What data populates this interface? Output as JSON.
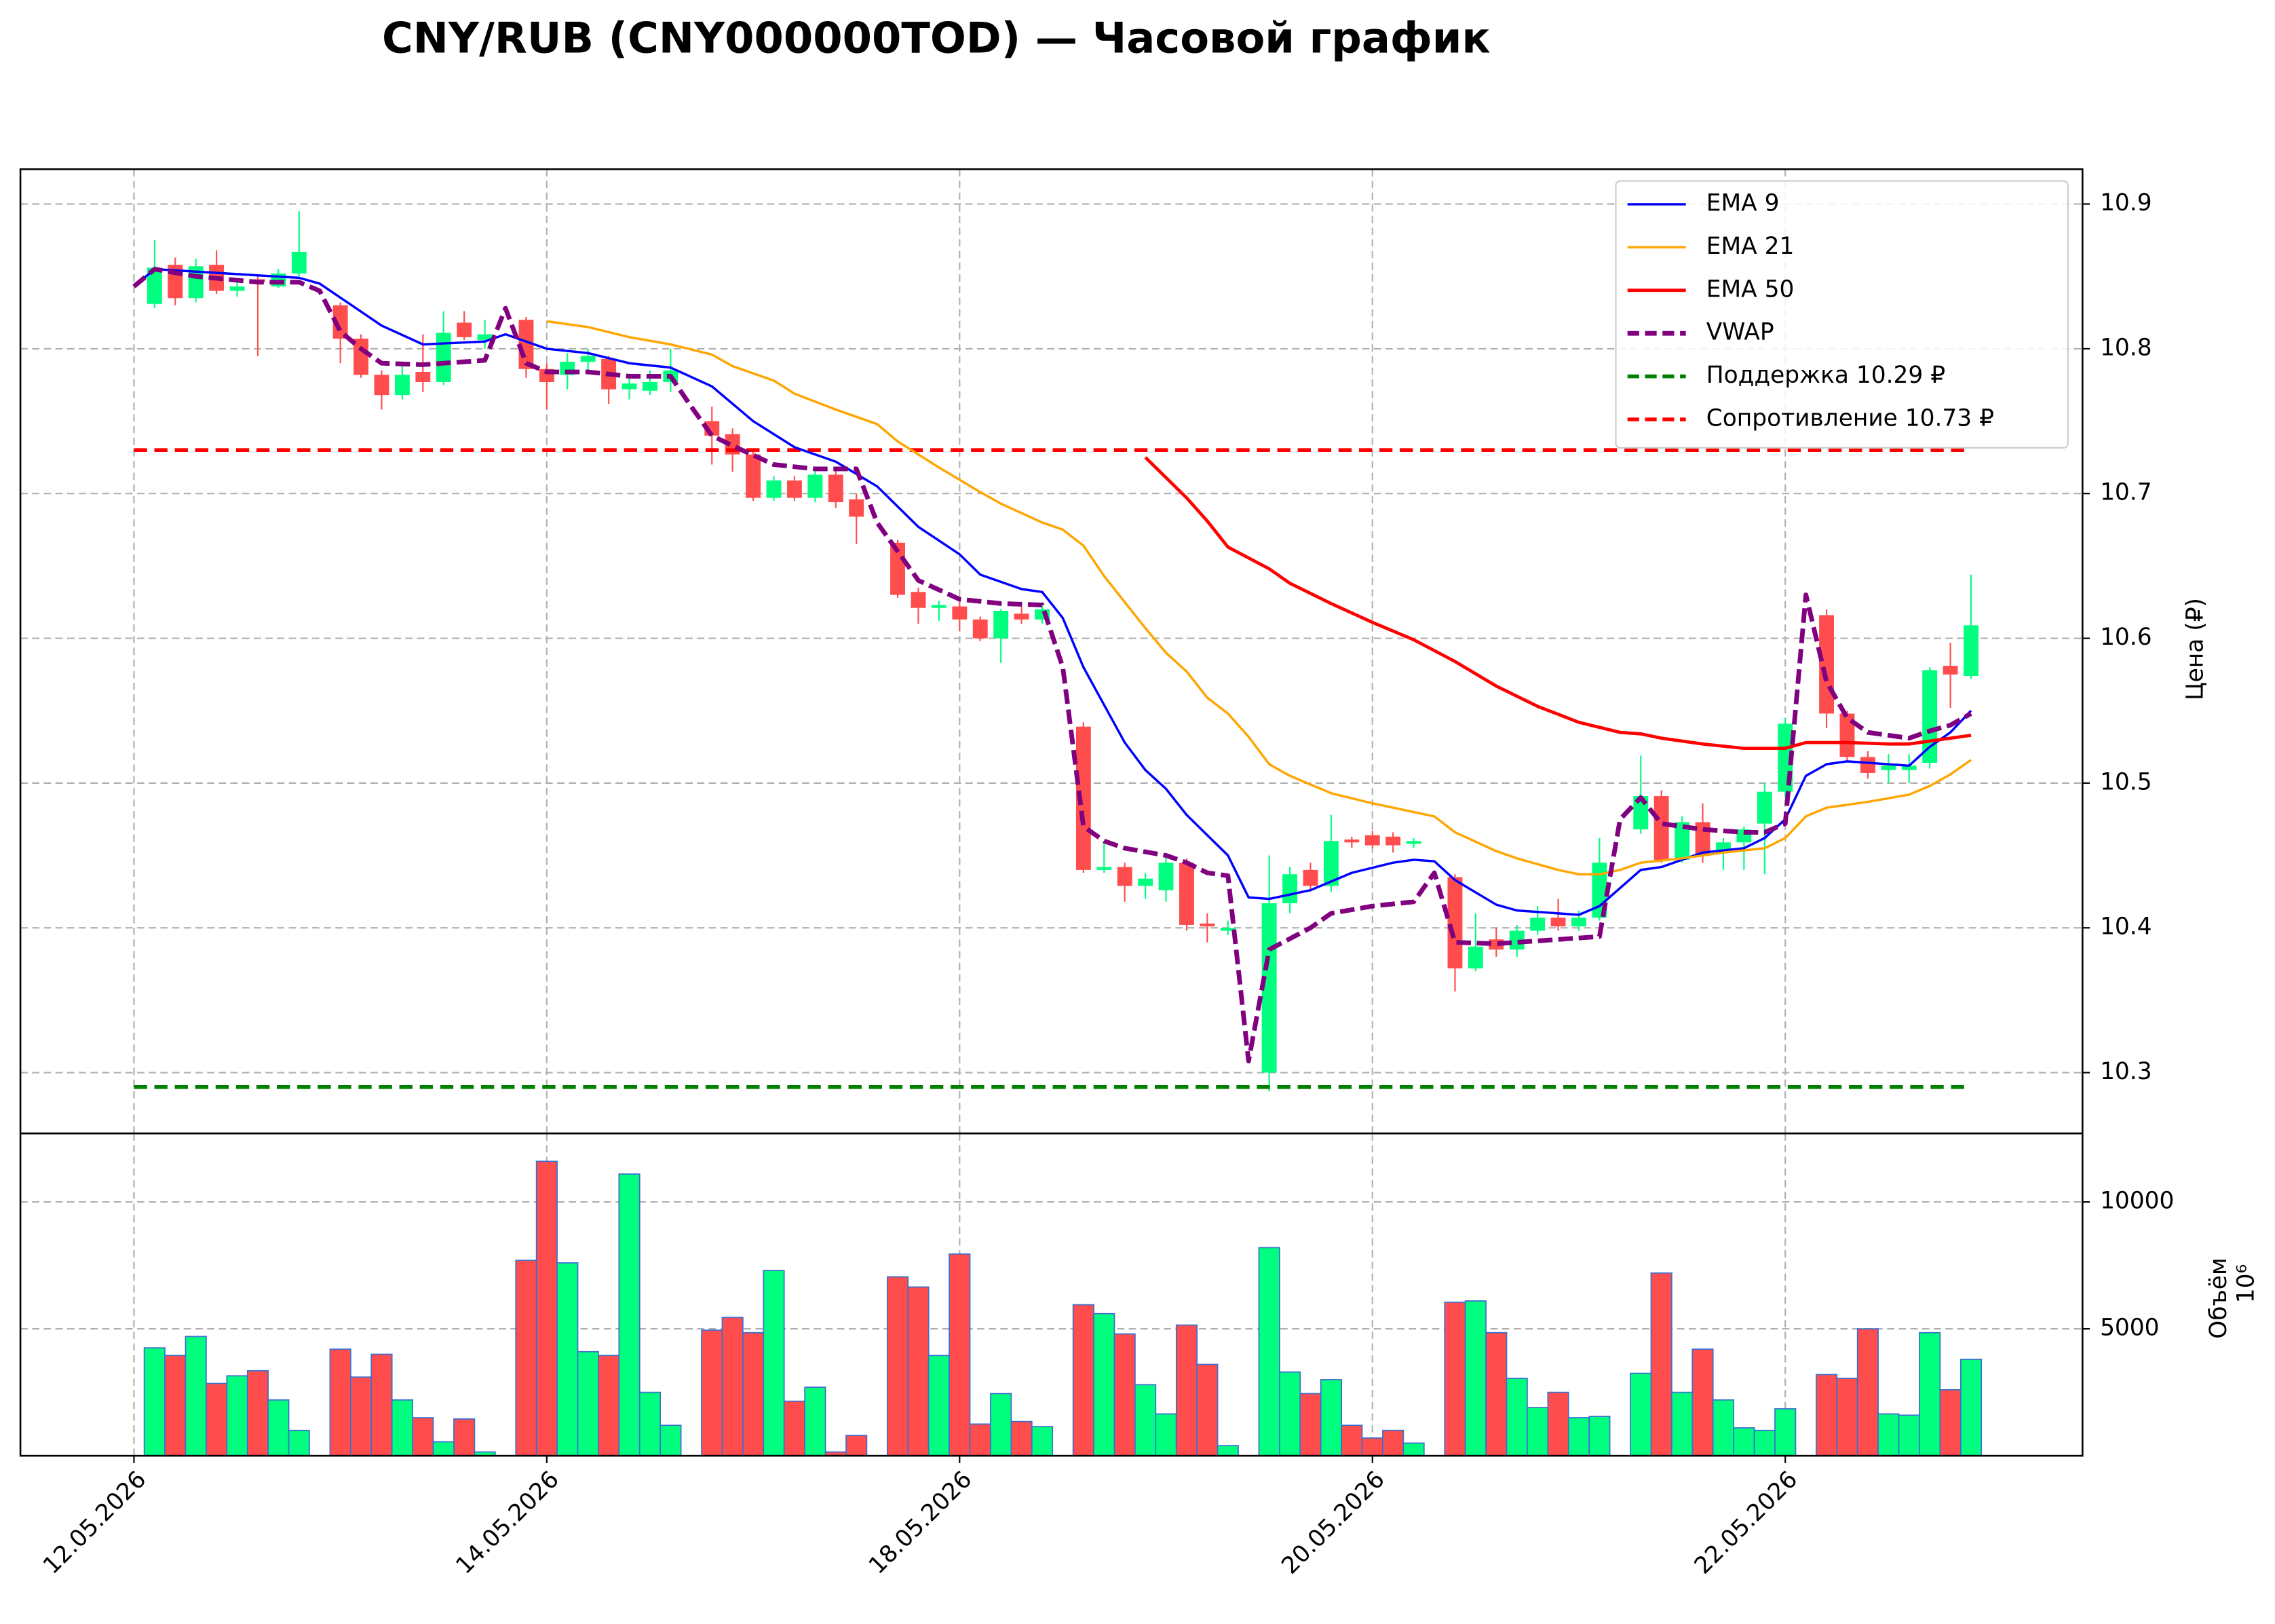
{
  "chart_data": {
    "type": "candlestick",
    "title": "CNY/RUB (CNY000000TOD) — Часовой график",
    "ylabel": "Цена (₽)",
    "ylim": [
      10.258,
      10.924
    ],
    "yticks": [
      10.3,
      10.4,
      10.5,
      10.6,
      10.7,
      10.8,
      10.9
    ],
    "xlim": [
      -5.5,
      94.4
    ],
    "xticks": [
      {
        "value": 0,
        "label": "12.05.2026"
      },
      {
        "value": 20,
        "label": "14.05.2026"
      },
      {
        "value": 40,
        "label": "18.05.2026"
      },
      {
        "value": 60,
        "label": "20.05.2026"
      },
      {
        "value": 80,
        "label": "22.05.2026"
      }
    ],
    "grid": true,
    "legend": "upper right",
    "up_color": "#00ff7f",
    "down_color": "#ff4d4d",
    "volume_edge": "#3a6fd0",
    "x": [
      1,
      2,
      3,
      4,
      5,
      6,
      7,
      8,
      10,
      11,
      12,
      13,
      14,
      15,
      16,
      17,
      19,
      20,
      21,
      22,
      23,
      24,
      25,
      26,
      28,
      29,
      30,
      31,
      32,
      33,
      34,
      35,
      37,
      38,
      39,
      40,
      41,
      42,
      43,
      44,
      46,
      47,
      48,
      49,
      50,
      51,
      52,
      53,
      55,
      56,
      57,
      58,
      59,
      60,
      61,
      62,
      64,
      65,
      66,
      67,
      68,
      69,
      70,
      71,
      73,
      74,
      75,
      76,
      77,
      78,
      79,
      80,
      82,
      83,
      84,
      85,
      86,
      87,
      88,
      89
    ],
    "open": [
      10.831,
      10.858,
      10.835,
      10.858,
      10.84,
      10.848,
      10.843,
      10.852,
      10.83,
      10.807,
      10.782,
      10.768,
      10.784,
      10.777,
      10.818,
      10.806,
      10.82,
      10.786,
      10.782,
      10.791,
      10.793,
      10.772,
      10.771,
      10.777,
      10.75,
      10.741,
      10.727,
      10.697,
      10.709,
      10.697,
      10.713,
      10.696,
      10.666,
      10.632,
      10.621,
      10.622,
      10.613,
      10.6,
      10.617,
      10.613,
      10.539,
      10.44,
      10.442,
      10.429,
      10.426,
      10.445,
      10.403,
      10.398,
      10.3,
      10.417,
      10.44,
      10.429,
      10.461,
      10.464,
      10.463,
      10.458,
      10.435,
      10.372,
      10.392,
      10.385,
      10.398,
      10.407,
      10.401,
      10.407,
      10.468,
      10.491,
      10.447,
      10.473,
      10.452,
      10.459,
      10.472,
      10.494,
      10.616,
      10.548,
      10.518,
      10.509,
      10.509,
      10.514,
      10.581,
      10.574
    ],
    "high": [
      10.875,
      10.863,
      10.862,
      10.868,
      10.846,
      10.85,
      10.855,
      10.895,
      10.832,
      10.81,
      10.785,
      10.79,
      10.81,
      10.826,
      10.826,
      10.82,
      10.822,
      10.79,
      10.797,
      10.8,
      10.795,
      10.78,
      10.785,
      10.8,
      10.76,
      10.745,
      10.73,
      10.712,
      10.712,
      10.716,
      10.716,
      10.7,
      10.668,
      10.635,
      10.626,
      10.625,
      10.615,
      10.62,
      10.622,
      10.625,
      10.542,
      10.46,
      10.445,
      10.438,
      10.45,
      10.448,
      10.41,
      10.405,
      10.45,
      10.442,
      10.445,
      10.478,
      10.463,
      10.467,
      10.466,
      10.462,
      10.437,
      10.41,
      10.4,
      10.402,
      10.415,
      10.42,
      10.412,
      10.462,
      10.519,
      10.495,
      10.477,
      10.486,
      10.462,
      10.47,
      10.5,
      10.545,
      10.62,
      10.55,
      10.522,
      10.52,
      10.52,
      10.58,
      10.597,
      10.644
    ],
    "low": [
      10.828,
      10.83,
      10.832,
      10.838,
      10.836,
      10.795,
      10.842,
      10.85,
      10.79,
      10.78,
      10.758,
      10.765,
      10.77,
      10.775,
      10.806,
      10.8,
      10.78,
      10.758,
      10.772,
      10.785,
      10.762,
      10.765,
      10.768,
      10.77,
      10.72,
      10.715,
      10.695,
      10.695,
      10.695,
      10.694,
      10.69,
      10.665,
      10.628,
      10.61,
      10.612,
      10.605,
      10.598,
      10.583,
      10.61,
      10.61,
      10.438,
      10.438,
      10.418,
      10.42,
      10.418,
      10.398,
      10.39,
      10.395,
      10.287,
      10.41,
      10.425,
      10.425,
      10.455,
      10.455,
      10.452,
      10.455,
      10.356,
      10.37,
      10.38,
      10.38,
      10.395,
      10.398,
      10.398,
      10.405,
      10.465,
      10.445,
      10.445,
      10.445,
      10.44,
      10.44,
      10.437,
      10.49,
      10.538,
      10.515,
      10.503,
      10.5,
      10.5,
      10.51,
      10.552,
      10.572
    ],
    "close": [
      10.856,
      10.835,
      10.857,
      10.84,
      10.843,
      10.846,
      10.852,
      10.867,
      10.807,
      10.782,
      10.768,
      10.782,
      10.777,
      10.811,
      10.808,
      10.81,
      10.786,
      10.777,
      10.791,
      10.795,
      10.772,
      10.776,
      10.777,
      10.785,
      10.74,
      10.727,
      10.697,
      10.709,
      10.697,
      10.713,
      10.694,
      10.684,
      10.63,
      10.621,
      10.623,
      10.613,
      10.6,
      10.619,
      10.613,
      10.62,
      10.44,
      10.442,
      10.429,
      10.434,
      10.445,
      10.402,
      10.401,
      10.4,
      10.417,
      10.437,
      10.429,
      10.46,
      10.459,
      10.457,
      10.457,
      10.46,
      10.372,
      10.387,
      10.385,
      10.398,
      10.407,
      10.401,
      10.407,
      10.445,
      10.491,
      10.447,
      10.473,
      10.45,
      10.459,
      10.468,
      10.494,
      10.541,
      10.548,
      10.518,
      10.507,
      10.512,
      10.512,
      10.578,
      10.575,
      10.609
    ],
    "volume": [
      4250,
      3950,
      4700,
      2850,
      3150,
      3350,
      2200,
      1000,
      4200,
      3100,
      4000,
      2200,
      1500,
      550,
      1450,
      150,
      7700,
      11600,
      7600,
      4100,
      3950,
      11100,
      2500,
      1200,
      4950,
      5450,
      4850,
      7300,
      2150,
      2700,
      150,
      800,
      7050,
      6650,
      3950,
      7950,
      1250,
      2450,
      1350,
      1150,
      5950,
      5600,
      4800,
      2800,
      1650,
      5150,
      3600,
      400,
      8200,
      3300,
      2450,
      3000,
      1200,
      700,
      1000,
      500,
      6050,
      6100,
      4850,
      3050,
      1900,
      2500,
      1500,
      1550,
      3250,
      7200,
      2500,
      4200,
      2200,
      1100,
      1000,
      1850,
      3200,
      3050,
      5000,
      1650,
      1600,
      4850,
      2600,
      3800
    ],
    "volume_ylabel": "Объём",
    "volume_offset": "10⁶",
    "volume_ylim": [
      0,
      12700
    ],
    "volume_yticks": [
      5000,
      10000
    ],
    "lines": [
      {
        "name": "EMA 9",
        "color": "#0000ff",
        "style": "solid",
        "width": 1.6,
        "x": [
          0,
          1,
          8,
          9,
          12,
          14,
          17,
          18,
          20,
          22,
          24,
          26,
          28,
          30,
          32,
          34,
          36,
          38,
          40,
          41,
          43,
          44,
          45,
          46,
          48,
          49,
          50,
          51,
          53,
          54,
          55,
          57,
          59,
          61,
          62,
          63,
          64,
          66,
          67,
          70,
          71,
          73,
          74,
          76,
          78,
          79,
          80,
          81,
          82,
          83,
          86,
          87,
          88,
          89
        ],
        "values": [
          10.843,
          10.855,
          10.849,
          10.845,
          10.816,
          10.803,
          10.805,
          10.81,
          10.8,
          10.797,
          10.79,
          10.787,
          10.774,
          10.75,
          10.732,
          10.722,
          10.705,
          10.677,
          10.658,
          10.644,
          10.634,
          10.632,
          10.614,
          10.58,
          10.528,
          10.509,
          10.496,
          10.478,
          10.45,
          10.421,
          10.42,
          10.426,
          10.438,
          10.445,
          10.447,
          10.446,
          10.433,
          10.416,
          10.412,
          10.409,
          10.415,
          10.44,
          10.442,
          10.452,
          10.455,
          10.462,
          10.475,
          10.505,
          10.513,
          10.515,
          10.512,
          10.525,
          10.535,
          10.55
        ]
      },
      {
        "name": "EMA 21",
        "color": "#ffa500",
        "style": "solid",
        "width": 1.6,
        "x": [
          20,
          22,
          24,
          26,
          28,
          29,
          31,
          32,
          34,
          36,
          37,
          39,
          41,
          42,
          44,
          45,
          46,
          47,
          49,
          50,
          51,
          52,
          53,
          54,
          55,
          56,
          58,
          60,
          62,
          63,
          64,
          66,
          67,
          69,
          70,
          71,
          72,
          73,
          75,
          77,
          79,
          80,
          81,
          82,
          84,
          86,
          87,
          88,
          89
        ],
        "values": [
          10.819,
          10.815,
          10.808,
          10.803,
          10.796,
          10.788,
          10.778,
          10.769,
          10.758,
          10.748,
          10.736,
          10.718,
          10.701,
          10.693,
          10.68,
          10.675,
          10.664,
          10.643,
          10.607,
          10.59,
          10.577,
          10.559,
          10.548,
          10.532,
          10.513,
          10.505,
          10.493,
          10.486,
          10.48,
          10.477,
          10.466,
          10.453,
          10.448,
          10.44,
          10.437,
          10.437,
          10.44,
          10.445,
          10.448,
          10.452,
          10.455,
          10.462,
          10.477,
          10.483,
          10.487,
          10.492,
          10.498,
          10.506,
          10.516
        ]
      },
      {
        "name": "EMA 50",
        "color": "#ff0000",
        "style": "solid",
        "width": 2.2,
        "x": [
          49,
          51,
          52,
          53,
          55,
          56,
          58,
          60,
          62,
          64,
          66,
          68,
          70,
          72,
          73,
          74,
          76,
          78,
          80,
          81,
          83,
          85,
          86,
          87,
          88,
          89
        ],
        "values": [
          10.725,
          10.697,
          10.681,
          10.663,
          10.648,
          10.638,
          10.624,
          10.611,
          10.599,
          10.584,
          10.567,
          10.553,
          10.542,
          10.535,
          10.534,
          10.531,
          10.527,
          10.524,
          10.524,
          10.528,
          10.528,
          10.527,
          10.527,
          10.529,
          10.531,
          10.533
        ]
      },
      {
        "name": "VWAP",
        "color": "#800080",
        "style": "dashed",
        "width": 3.2,
        "x": [
          0,
          1,
          3,
          6,
          8,
          9,
          10,
          11,
          12,
          14,
          16,
          17,
          18,
          19,
          20,
          22,
          24,
          26,
          27,
          28,
          29,
          31,
          33,
          35,
          36,
          37,
          38,
          40,
          42,
          44,
          45,
          46,
          47,
          48,
          50,
          51,
          52,
          53,
          54,
          55,
          57,
          58,
          60,
          62,
          63,
          64,
          66,
          69,
          71,
          72,
          73,
          74,
          76,
          78,
          79,
          80,
          81,
          82,
          83,
          84,
          86,
          87,
          88,
          89
        ],
        "values": [
          10.843,
          10.855,
          10.85,
          10.846,
          10.846,
          10.84,
          10.812,
          10.8,
          10.79,
          10.789,
          10.791,
          10.792,
          10.828,
          10.79,
          10.784,
          10.784,
          10.781,
          10.781,
          10.76,
          10.74,
          10.733,
          10.72,
          10.717,
          10.717,
          10.68,
          10.66,
          10.64,
          10.627,
          10.624,
          10.623,
          10.58,
          10.47,
          10.46,
          10.455,
          10.45,
          10.445,
          10.438,
          10.436,
          10.308,
          10.385,
          10.4,
          10.41,
          10.415,
          10.418,
          10.438,
          10.39,
          10.389,
          10.392,
          10.394,
          10.475,
          10.49,
          10.472,
          10.468,
          10.466,
          10.466,
          10.472,
          10.63,
          10.57,
          10.545,
          10.535,
          10.531,
          10.536,
          10.54,
          10.548
        ]
      }
    ],
    "hlines": [
      {
        "name": "Поддержка 10.29 ₽",
        "color": "#008000",
        "value": 10.29
      },
      {
        "name": "Сопротивление 10.73 ₽",
        "color": "#ff0000",
        "value": 10.73
      }
    ]
  }
}
